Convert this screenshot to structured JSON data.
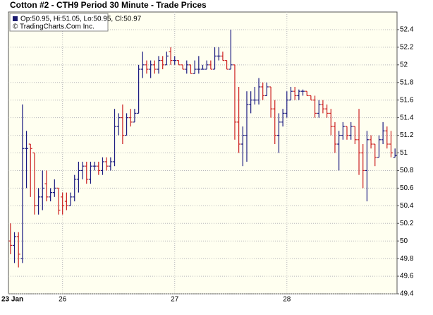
{
  "chart_data": {
    "type": "ohlc",
    "title": "Cotton #2 - CTH9 Period 30 Minute - Trade Prices",
    "legend_text": "Op:50.95, Hi:51.05, Lo:50.95, Cl:50.97",
    "copyright": "© TradingCharts.Com Inc.",
    "legend_color": "#1a1a6e",
    "up_color": "#1a1a80",
    "down_color": "#cc1f1f",
    "grid": true,
    "categories": [
      "23 Jan",
      null,
      null,
      null,
      null,
      null,
      null,
      null,
      null,
      null,
      null,
      null,
      null,
      "26",
      null,
      null,
      null,
      null,
      null,
      null,
      null,
      null,
      null,
      null,
      null,
      null,
      null,
      null,
      null,
      null,
      null,
      null,
      null,
      null,
      null,
      null,
      null,
      null,
      null,
      null,
      null,
      "27",
      null,
      null,
      null,
      null,
      null,
      null,
      null,
      null,
      null,
      null,
      null,
      null,
      null,
      null,
      null,
      null,
      null,
      null,
      null,
      null,
      null,
      null,
      null,
      null,
      null,
      null,
      null,
      "28",
      null,
      null,
      null,
      null,
      null,
      null,
      null,
      null,
      null,
      null,
      null,
      null,
      null,
      null,
      null,
      null,
      null,
      null,
      null,
      null,
      null,
      null,
      null,
      null,
      null,
      null,
      null
    ],
    "open": [
      50.0,
      49.95,
      50.05,
      49.8,
      51.05,
      51.1,
      51.0,
      50.4,
      50.5,
      50.65,
      50.5,
      50.55,
      50.6,
      50.5,
      50.45,
      50.4,
      50.5,
      50.7,
      50.8,
      50.85,
      50.7,
      50.85,
      50.85,
      50.8,
      50.9,
      50.85,
      50.9,
      51.3,
      51.4,
      51.2,
      51.4,
      51.35,
      51.45,
      51.95,
      52.0,
      51.95,
      52.0,
      51.95,
      52.05,
      52.0,
      52.15,
      52.05,
      52.05,
      52.0,
      51.95,
      52.0,
      51.9,
      51.95,
      51.95,
      51.95,
      52.0,
      51.95,
      52.1,
      52.1,
      52.05,
      51.95,
      52.0,
      51.35,
      51.1,
      51.2,
      51.55,
      51.6,
      51.6,
      51.75,
      51.65,
      51.75,
      51.5,
      51.2,
      51.35,
      51.45,
      51.6,
      51.7,
      51.65,
      51.7,
      51.7,
      51.65,
      51.6,
      51.45,
      51.55,
      51.5,
      51.45,
      51.3,
      51.1,
      51.2,
      51.3,
      51.2,
      51.3,
      51.15,
      51.0,
      50.8,
      51.15,
      51.1,
      50.95,
      51.15,
      51.25,
      51.1,
      50.95
    ],
    "high": [
      50.2,
      50.1,
      50.1,
      51.55,
      51.25,
      51.1,
      51.0,
      50.6,
      50.8,
      50.8,
      50.6,
      50.7,
      50.6,
      50.55,
      50.55,
      50.55,
      50.75,
      50.9,
      50.9,
      50.9,
      50.9,
      50.9,
      50.9,
      50.95,
      50.95,
      50.95,
      51.5,
      51.45,
      51.55,
      51.45,
      51.5,
      51.5,
      52.0,
      52.15,
      52.05,
      52.05,
      52.05,
      52.1,
      52.1,
      52.15,
      52.2,
      52.1,
      52.05,
      52.0,
      52.05,
      52.0,
      52.05,
      52.1,
      52.0,
      52.05,
      52.05,
      52.2,
      52.2,
      52.15,
      52.05,
      52.4,
      52.0,
      51.75,
      51.3,
      51.7,
      51.7,
      51.75,
      51.85,
      51.8,
      51.8,
      51.75,
      51.6,
      51.45,
      51.5,
      51.7,
      51.75,
      51.75,
      51.72,
      51.72,
      51.7,
      51.65,
      51.65,
      51.6,
      51.6,
      51.55,
      51.5,
      51.35,
      51.25,
      51.35,
      51.3,
      51.35,
      51.3,
      51.5,
      51.1,
      51.25,
      51.2,
      51.1,
      51.2,
      51.35,
      51.3,
      51.25,
      51.05
    ],
    "low": [
      49.85,
      49.75,
      49.7,
      49.75,
      50.6,
      50.5,
      50.3,
      50.3,
      50.35,
      50.45,
      50.45,
      50.5,
      50.3,
      50.3,
      50.35,
      50.4,
      50.45,
      50.55,
      50.7,
      50.65,
      50.65,
      50.8,
      50.75,
      50.75,
      50.8,
      50.8,
      50.85,
      51.2,
      51.1,
      51.2,
      51.3,
      51.35,
      51.45,
      51.85,
      51.9,
      51.85,
      51.9,
      51.9,
      51.95,
      52.0,
      52.0,
      52.0,
      52.0,
      51.95,
      51.9,
      51.9,
      51.9,
      51.9,
      51.95,
      51.95,
      51.95,
      51.95,
      52.05,
      52.05,
      51.95,
      51.95,
      51.15,
      51.0,
      50.85,
      50.9,
      51.45,
      51.55,
      51.55,
      51.6,
      51.65,
      51.4,
      51.1,
      51.0,
      51.3,
      51.4,
      51.6,
      51.6,
      51.6,
      51.65,
      51.65,
      51.6,
      51.4,
      51.4,
      51.45,
      51.4,
      51.2,
      51.0,
      50.8,
      51.15,
      51.15,
      51.15,
      51.1,
      50.75,
      50.6,
      50.45,
      51.05,
      50.85,
      50.95,
      51.1,
      51.05,
      50.95,
      50.95
    ],
    "close": [
      49.95,
      50.05,
      49.85,
      51.05,
      51.05,
      51.05,
      50.4,
      50.5,
      50.6,
      50.5,
      50.55,
      50.6,
      50.35,
      50.4,
      50.4,
      50.5,
      50.7,
      50.8,
      50.85,
      50.7,
      50.85,
      50.85,
      50.8,
      50.9,
      50.85,
      50.9,
      51.3,
      51.4,
      51.2,
      51.4,
      51.35,
      51.45,
      51.95,
      52.0,
      51.95,
      52.0,
      51.95,
      52.05,
      52.0,
      52.1,
      52.05,
      52.05,
      52.0,
      51.95,
      52.0,
      51.9,
      51.95,
      51.95,
      51.95,
      52.0,
      51.95,
      52.1,
      52.1,
      52.05,
      51.95,
      52.0,
      51.35,
      51.1,
      51.2,
      51.55,
      51.6,
      51.6,
      51.75,
      51.65,
      51.75,
      51.5,
      51.2,
      51.35,
      51.45,
      51.6,
      51.7,
      51.65,
      51.7,
      51.7,
      51.65,
      51.6,
      51.45,
      51.55,
      51.5,
      51.45,
      51.3,
      51.1,
      51.2,
      51.3,
      51.2,
      51.3,
      51.15,
      51.0,
      50.8,
      51.15,
      51.1,
      50.95,
      51.15,
      51.25,
      51.1,
      51.0,
      50.97
    ],
    "ylim": [
      49.4,
      52.6
    ],
    "yticks": [
      49.4,
      49.6,
      49.8,
      50,
      50.2,
      50.4,
      50.6,
      50.8,
      51,
      51.2,
      51.4,
      51.6,
      51.8,
      52,
      52.2,
      52.4
    ]
  }
}
